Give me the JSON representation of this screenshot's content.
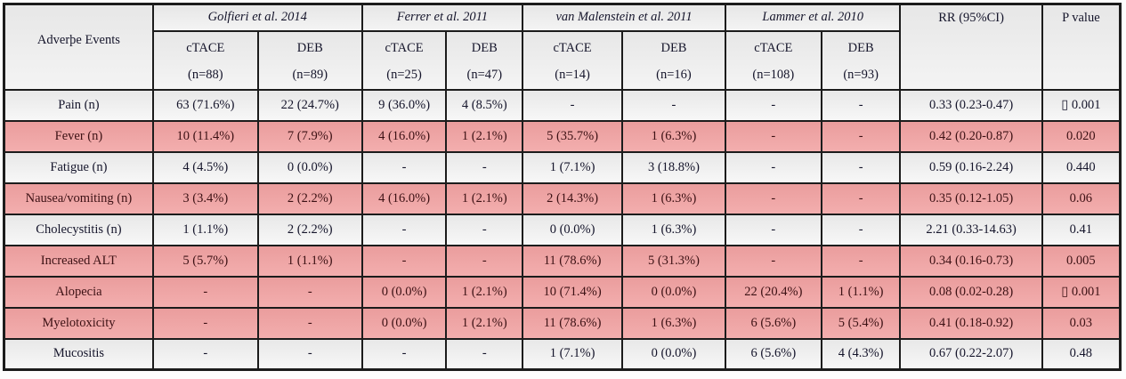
{
  "chart_data": {
    "type": "table",
    "corner_header": "Adverþe Events",
    "studies": [
      {
        "name": "Golfieri et al. 2014",
        "arms": [
          {
            "label": "cTACE",
            "n": "(n=88)"
          },
          {
            "label": "DEB",
            "n": "(n=89)"
          }
        ]
      },
      {
        "name": "Ferrer et al. 2011",
        "arms": [
          {
            "label": "cTACE",
            "n": "(n=25)"
          },
          {
            "label": "DEB",
            "n": "(n=47)"
          }
        ]
      },
      {
        "name": "van Malenstein et al. 2011",
        "arms": [
          {
            "label": "cTACE",
            "n": "(n=14)"
          },
          {
            "label": "DEB",
            "n": "(n=16)"
          }
        ]
      },
      {
        "name": "Lammer et al. 2010",
        "arms": [
          {
            "label": "cTACE",
            "n": "(n=108)"
          },
          {
            "label": "DEB",
            "n": "(n=93)"
          }
        ]
      }
    ],
    "rr_header": "RR (95%CI)",
    "p_header": "P value",
    "rows": [
      {
        "label": "Pain (n)",
        "highlight": false,
        "values": [
          "63 (71.6%)",
          "22 (24.7%)",
          "9 (36.0%)",
          "4 (8.5%)",
          "-",
          "-",
          "-",
          "-"
        ],
        "rr": "0.33 (0.23-0.47)",
        "p": "▯ 0.001"
      },
      {
        "label": "Fever (n)",
        "highlight": true,
        "values": [
          "10 (11.4%)",
          "7 (7.9%)",
          "4 (16.0%)",
          "1 (2.1%)",
          "5 (35.7%)",
          "1 (6.3%)",
          "-",
          "-"
        ],
        "rr": "0.42 (0.20-0.87)",
        "p": "0.020"
      },
      {
        "label": "Fatigue (n)",
        "highlight": false,
        "values": [
          "4 (4.5%)",
          "0 (0.0%)",
          "-",
          "-",
          "1 (7.1%)",
          "3 (18.8%)",
          "-",
          "-"
        ],
        "rr": "0.59 (0.16-2.24)",
        "p": "0.440"
      },
      {
        "label": "Nausea/vomiting (n)",
        "highlight": true,
        "values": [
          "3 (3.4%)",
          "2 (2.2%)",
          "4 (16.0%)",
          "1 (2.1%)",
          "2 (14.3%)",
          "1 (6.3%)",
          "-",
          "-"
        ],
        "rr": "0.35 (0.12-1.05)",
        "p": "0.06"
      },
      {
        "label": "Cholecystitis (n)",
        "highlight": false,
        "values": [
          "1 (1.1%)",
          "2 (2.2%)",
          "-",
          "-",
          "0 (0.0%)",
          "1 (6.3%)",
          "-",
          "-"
        ],
        "rr": "2.21 (0.33-14.63)",
        "p": "0.41"
      },
      {
        "label": "Increased ALT",
        "highlight": true,
        "values": [
          "5 (5.7%)",
          "1 (1.1%)",
          "-",
          "-",
          "11 (78.6%)",
          "5 (31.3%)",
          "-",
          "-"
        ],
        "rr": "0.34 (0.16-0.73)",
        "p": "0.005"
      },
      {
        "label": "Alopecia",
        "highlight": true,
        "values": [
          "-",
          "-",
          "0 (0.0%)",
          "1 (2.1%)",
          "10 (71.4%)",
          "0 (0.0%)",
          "22 (20.4%)",
          "1 (1.1%)"
        ],
        "rr": "0.08 (0.02-0.28)",
        "p": "▯ 0.001"
      },
      {
        "label": "Myelotoxicity",
        "highlight": true,
        "values": [
          "-",
          "-",
          "0 (0.0%)",
          "1 (2.1%)",
          "11 (78.6%)",
          "1 (6.3%)",
          "6 (5.6%)",
          "5 (5.4%)"
        ],
        "rr": "0.41 (0.18-0.92)",
        "p": "0.03"
      },
      {
        "label": "Mucositis",
        "highlight": false,
        "values": [
          "-",
          "-",
          "-",
          "-",
          "1 (7.1%)",
          "0 (0.0%)",
          "6 (5.6%)",
          "4 (4.3%)"
        ],
        "rr": "0.67 (0.22-2.07)",
        "p": "0.48"
      }
    ],
    "colors": {
      "highlight_row_bg": "#efa5a5",
      "normal_row_bg": "#eeeeee",
      "highlight_text": "#3c1114",
      "normal_text": "#15152b",
      "border": "#1c1c1c"
    }
  }
}
